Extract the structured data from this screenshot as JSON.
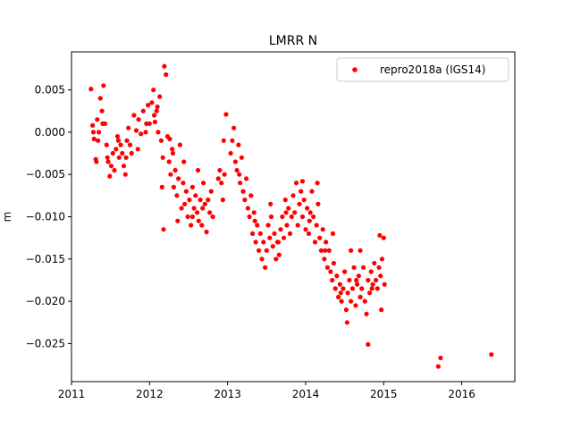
{
  "chart_data": {
    "type": "scatter",
    "title": "LMRR N",
    "xlabel": "",
    "ylabel": "m",
    "xlim": [
      2011.0,
      2016.68
    ],
    "ylim": [
      -0.0295,
      0.0095
    ],
    "x_ticks": [
      2011,
      2012,
      2013,
      2014,
      2015,
      2016
    ],
    "x_tick_labels": [
      "2011",
      "2012",
      "2013",
      "2014",
      "2015",
      "2016"
    ],
    "y_ticks": [
      0.005,
      0.0,
      -0.005,
      -0.01,
      -0.015,
      -0.02,
      -0.025
    ],
    "y_tick_labels": [
      "0.005",
      "0.000",
      "−0.005",
      "−0.010",
      "−0.015",
      "−0.020",
      "−0.025"
    ],
    "grid": false,
    "legend_position": "top-right",
    "series": [
      {
        "name": "repro2018a (IGS14)",
        "color": "#ff0000",
        "marker": "dot",
        "points": [
          [
            2011.25,
            0.0051
          ],
          [
            2011.27,
            0.0008
          ],
          [
            2011.29,
            -0.0008
          ],
          [
            2011.31,
            -0.0032
          ],
          [
            2011.33,
            0.0015
          ],
          [
            2011.35,
            0.0
          ],
          [
            2011.37,
            0.004
          ],
          [
            2011.39,
            0.0025
          ],
          [
            2011.41,
            0.0055
          ],
          [
            2011.43,
            0.001
          ],
          [
            2011.45,
            -0.0015
          ],
          [
            2011.47,
            -0.0035
          ],
          [
            2011.49,
            -0.0052
          ],
          [
            2011.51,
            -0.004
          ],
          [
            2011.53,
            -0.0025
          ],
          [
            2011.55,
            -0.0045
          ],
          [
            2011.57,
            -0.002
          ],
          [
            2011.59,
            -0.0005
          ],
          [
            2011.61,
            -0.003
          ],
          [
            2011.63,
            -0.0015
          ],
          [
            2011.65,
            -0.0025
          ],
          [
            2011.67,
            -0.004
          ],
          [
            2011.69,
            -0.005
          ],
          [
            2011.71,
            -0.001
          ],
          [
            2011.73,
            0.0005
          ],
          [
            2011.75,
            -0.0015
          ],
          [
            2011.77,
            -0.0025
          ],
          [
            2011.8,
            0.002
          ],
          [
            2011.83,
            0.0002
          ],
          [
            2011.86,
            0.0015
          ],
          [
            2011.89,
            -0.0002
          ],
          [
            2011.92,
            0.0025
          ],
          [
            2011.95,
            0.0
          ],
          [
            2011.98,
            0.0032
          ],
          [
            2012.0,
            0.001
          ],
          [
            2012.03,
            0.0035
          ],
          [
            2012.05,
            0.005
          ],
          [
            2012.07,
            0.0012
          ],
          [
            2012.09,
            0.0025
          ],
          [
            2012.11,
            0.0
          ],
          [
            2012.13,
            0.0042
          ],
          [
            2012.15,
            -0.001
          ],
          [
            2012.17,
            -0.003
          ],
          [
            2012.19,
            0.0078
          ],
          [
            2012.21,
            0.0068
          ],
          [
            2012.23,
            -0.0005
          ],
          [
            2012.25,
            -0.0035
          ],
          [
            2012.27,
            -0.005
          ],
          [
            2012.29,
            -0.002
          ],
          [
            2012.31,
            -0.0065
          ],
          [
            2012.33,
            -0.0045
          ],
          [
            2012.35,
            -0.0075
          ],
          [
            2012.37,
            -0.0055
          ],
          [
            2012.39,
            -0.0015
          ],
          [
            2012.41,
            -0.009
          ],
          [
            2012.43,
            -0.006
          ],
          [
            2012.45,
            -0.0085
          ],
          [
            2012.47,
            -0.007
          ],
          [
            2012.49,
            -0.01
          ],
          [
            2012.51,
            -0.008
          ],
          [
            2012.53,
            -0.011
          ],
          [
            2012.55,
            -0.0065
          ],
          [
            2012.57,
            -0.009
          ],
          [
            2012.59,
            -0.0075
          ],
          [
            2012.61,
            -0.0095
          ],
          [
            2012.63,
            -0.0105
          ],
          [
            2012.65,
            -0.008
          ],
          [
            2012.67,
            -0.011
          ],
          [
            2012.69,
            -0.006
          ],
          [
            2012.71,
            -0.0085
          ],
          [
            2012.73,
            -0.0118
          ],
          [
            2012.75,
            -0.008
          ],
          [
            2012.77,
            -0.0095
          ],
          [
            2012.79,
            -0.007
          ],
          [
            2012.81,
            -0.01
          ],
          [
            2012.18,
            -0.0115
          ],
          [
            2012.16,
            -0.0065
          ],
          [
            2012.36,
            -0.0105
          ],
          [
            2012.44,
            -0.0035
          ],
          [
            2012.62,
            -0.0045
          ],
          [
            2012.88,
            -0.0055
          ],
          [
            2012.9,
            -0.0045
          ],
          [
            2012.92,
            -0.006
          ],
          [
            2012.94,
            -0.008
          ],
          [
            2012.95,
            -0.001
          ],
          [
            2012.96,
            -0.005
          ],
          [
            2012.98,
            0.0021
          ],
          [
            2013.04,
            -0.0025
          ],
          [
            2013.06,
            -0.001
          ],
          [
            2013.08,
            0.0005
          ],
          [
            2013.1,
            -0.0035
          ],
          [
            2013.12,
            -0.0045
          ],
          [
            2013.14,
            -0.0015
          ],
          [
            2013.16,
            -0.006
          ],
          [
            2013.18,
            -0.003
          ],
          [
            2013.2,
            -0.007
          ],
          [
            2013.22,
            -0.008
          ],
          [
            2013.24,
            -0.0055
          ],
          [
            2013.26,
            -0.009
          ],
          [
            2013.28,
            -0.01
          ],
          [
            2013.3,
            -0.0075
          ],
          [
            2013.32,
            -0.012
          ],
          [
            2013.34,
            -0.0095
          ],
          [
            2013.36,
            -0.013
          ],
          [
            2013.38,
            -0.011
          ],
          [
            2013.4,
            -0.014
          ],
          [
            2013.42,
            -0.012
          ],
          [
            2013.44,
            -0.015
          ],
          [
            2013.46,
            -0.013
          ],
          [
            2013.48,
            -0.016
          ],
          [
            2013.5,
            -0.014
          ],
          [
            2013.52,
            -0.011
          ],
          [
            2013.54,
            -0.0125
          ],
          [
            2013.56,
            -0.01
          ],
          [
            2013.58,
            -0.0135
          ],
          [
            2013.6,
            -0.012
          ],
          [
            2013.62,
            -0.015
          ],
          [
            2013.64,
            -0.013
          ],
          [
            2013.66,
            -0.0145
          ],
          [
            2013.68,
            -0.0115
          ],
          [
            2013.7,
            -0.01
          ],
          [
            2013.72,
            -0.0125
          ],
          [
            2013.74,
            -0.008
          ],
          [
            2013.76,
            -0.011
          ],
          [
            2013.78,
            -0.009
          ],
          [
            2013.8,
            -0.012
          ],
          [
            2013.82,
            -0.01
          ],
          [
            2013.84,
            -0.0075
          ],
          [
            2013.86,
            -0.0095
          ],
          [
            2013.88,
            -0.006
          ],
          [
            2013.9,
            -0.011
          ],
          [
            2013.92,
            -0.0085
          ],
          [
            2013.94,
            -0.007
          ],
          [
            2013.96,
            -0.01
          ],
          [
            2013.98,
            -0.008
          ],
          [
            2014.0,
            -0.0115
          ],
          [
            2014.02,
            -0.009
          ],
          [
            2014.04,
            -0.012
          ],
          [
            2014.06,
            -0.0095
          ],
          [
            2014.08,
            -0.007
          ],
          [
            2014.1,
            -0.01
          ],
          [
            2014.12,
            -0.013
          ],
          [
            2014.14,
            -0.011
          ],
          [
            2014.16,
            -0.0085
          ],
          [
            2014.18,
            -0.0125
          ],
          [
            2014.2,
            -0.014
          ],
          [
            2014.22,
            -0.0115
          ],
          [
            2014.24,
            -0.015
          ],
          [
            2014.26,
            -0.013
          ],
          [
            2014.28,
            -0.016
          ],
          [
            2014.3,
            -0.014
          ],
          [
            2014.32,
            -0.0165
          ],
          [
            2014.34,
            -0.0175
          ],
          [
            2014.36,
            -0.0155
          ],
          [
            2014.38,
            -0.0185
          ],
          [
            2014.4,
            -0.017
          ],
          [
            2014.42,
            -0.0195
          ],
          [
            2014.44,
            -0.018
          ],
          [
            2014.46,
            -0.02
          ],
          [
            2014.48,
            -0.0185
          ],
          [
            2014.5,
            -0.0165
          ],
          [
            2014.52,
            -0.021
          ],
          [
            2014.54,
            -0.019
          ],
          [
            2014.56,
            -0.0175
          ],
          [
            2014.58,
            -0.02
          ],
          [
            2014.6,
            -0.0185
          ],
          [
            2014.62,
            -0.016
          ],
          [
            2014.64,
            -0.0205
          ],
          [
            2014.66,
            -0.018
          ],
          [
            2014.68,
            -0.017
          ],
          [
            2014.7,
            -0.0195
          ],
          [
            2014.72,
            -0.0185
          ],
          [
            2014.74,
            -0.016
          ],
          [
            2014.76,
            -0.02
          ],
          [
            2014.78,
            -0.0215
          ],
          [
            2014.8,
            -0.0175
          ],
          [
            2014.82,
            -0.019
          ],
          [
            2014.84,
            -0.0165
          ],
          [
            2014.86,
            -0.018
          ],
          [
            2014.88,
            -0.0155
          ],
          [
            2014.9,
            -0.0175
          ],
          [
            2014.92,
            -0.0185
          ],
          [
            2014.94,
            -0.016
          ],
          [
            2014.96,
            -0.017
          ],
          [
            2014.98,
            -0.015
          ],
          [
            2014.53,
            -0.0225
          ],
          [
            2014.58,
            -0.014
          ],
          [
            2014.7,
            -0.014
          ],
          [
            2014.8,
            -0.0251
          ],
          [
            2014.95,
            -0.0122
          ],
          [
            2014.97,
            -0.021
          ],
          [
            2015.0,
            -0.0125
          ],
          [
            2015.01,
            -0.018
          ],
          [
            2014.35,
            -0.012
          ],
          [
            2014.15,
            -0.006
          ],
          [
            2013.96,
            -0.0058
          ],
          [
            2013.55,
            -0.0085
          ],
          [
            2012.3,
            -0.0025
          ],
          [
            2012.1,
            0.003
          ],
          [
            2012.06,
            0.002
          ],
          [
            2011.96,
            0.001
          ],
          [
            2011.85,
            -0.002
          ],
          [
            2011.7,
            -0.003
          ],
          [
            2011.6,
            -0.001
          ],
          [
            2011.46,
            -0.003
          ],
          [
            2011.4,
            0.001
          ],
          [
            2011.34,
            -0.001
          ],
          [
            2011.28,
            0.0
          ],
          [
            2011.32,
            -0.0035
          ],
          [
            2012.26,
            -0.0008
          ],
          [
            2012.55,
            -0.01
          ],
          [
            2012.68,
            -0.009
          ],
          [
            2013.15,
            -0.005
          ],
          [
            2013.35,
            -0.0105
          ],
          [
            2013.65,
            -0.013
          ],
          [
            2013.75,
            -0.0095
          ],
          [
            2014.05,
            -0.0105
          ],
          [
            2014.25,
            -0.014
          ],
          [
            2014.45,
            -0.019
          ],
          [
            2014.65,
            -0.0175
          ],
          [
            2014.85,
            -0.0185
          ],
          [
            2015.7,
            -0.0277
          ],
          [
            2015.73,
            -0.0267
          ],
          [
            2016.38,
            -0.0263
          ]
        ]
      }
    ]
  }
}
